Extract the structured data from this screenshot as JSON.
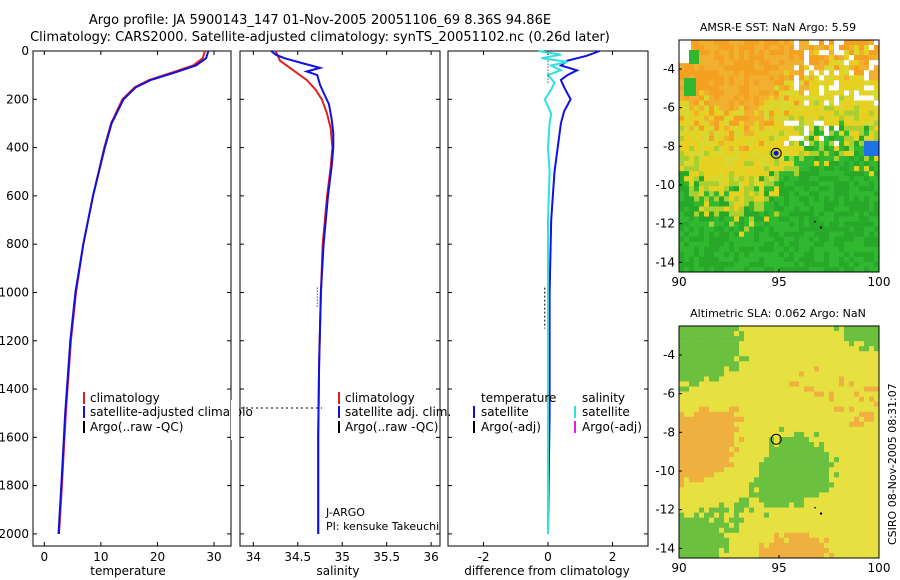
{
  "header": {
    "title_line1": "Argo profile: JA 5900143_147 01-Nov-2005 20051106_69 8.36S 94.86E",
    "title_line2": "Climatology: CARS2000. Satellite-adjusted climatology: synTS_20051102.nc (0.26d later)"
  },
  "footer": {
    "credit": "CSIRO 08-Nov-2005 08:31:07"
  },
  "colors": {
    "climatology": "#e02020",
    "satellite": "#1010e0",
    "argo": "#000000",
    "salinity_sat": "#30e0e0",
    "salinity_argo": "#e020e0",
    "sst_orange": "#f4a020",
    "sst_yellow": "#e8d020",
    "sst_green": "#30b830",
    "sla_yellow": "#e6e040",
    "sla_green": "#6cc040",
    "sla_orange": "#f0b040"
  },
  "chart_data": [
    {
      "type": "line",
      "name": "temperature-profile",
      "xlabel": "temperature",
      "ylabel": "",
      "xlim": [
        -2,
        33
      ],
      "ylim": [
        2050,
        0
      ],
      "xticks": [
        0,
        10,
        20,
        30
      ],
      "yticks": [
        0,
        200,
        400,
        600,
        800,
        1000,
        1200,
        1400,
        1600,
        1800,
        2000
      ],
      "legend": [
        "climatology",
        "satellite-adjusted climatolo",
        "Argo(..raw -QC)"
      ],
      "series": [
        {
          "name": "climatology",
          "depth": [
            0,
            30,
            60,
            90,
            120,
            150,
            200,
            300,
            400,
            600,
            800,
            1000,
            1200,
            1500,
            1800,
            2000
          ],
          "values": [
            28.4,
            28.0,
            26.3,
            22.5,
            18.5,
            16.0,
            13.8,
            11.8,
            10.6,
            8.6,
            6.9,
            5.6,
            4.7,
            3.8,
            3.1,
            2.6
          ]
        },
        {
          "name": "satellite",
          "depth": [
            0,
            30,
            60,
            90,
            120,
            150,
            200,
            300,
            400,
            600,
            800,
            1000,
            1200,
            1500,
            1800,
            2000
          ],
          "values": [
            29.0,
            28.6,
            26.8,
            23.0,
            18.8,
            16.2,
            14.0,
            11.9,
            10.7,
            8.6,
            6.9,
            5.5,
            4.6,
            3.7,
            3.0,
            2.5
          ]
        }
      ]
    },
    {
      "type": "line",
      "name": "salinity-profile",
      "xlabel": "salinity",
      "xlim": [
        33.85,
        36.1
      ],
      "ylim": [
        2050,
        0
      ],
      "xticks": [
        34,
        34.5,
        35,
        35.5,
        36
      ],
      "legend": [
        "climatology",
        "satellite adj. clim.",
        "Argo(..raw -QC)"
      ],
      "annotations": [
        "J-ARGO",
        "PI: kensuke Takeuchi"
      ],
      "series": [
        {
          "name": "climatology",
          "depth": [
            0,
            40,
            80,
            120,
            160,
            200,
            260,
            320,
            400,
            480,
            600,
            800,
            1000,
            1300,
            1600,
            2000
          ],
          "values": [
            34.25,
            34.3,
            34.45,
            34.6,
            34.7,
            34.77,
            34.83,
            34.87,
            34.89,
            34.87,
            34.83,
            34.78,
            34.76,
            34.74,
            34.73,
            34.73
          ]
        },
        {
          "name": "satellite",
          "depth": [
            0,
            15,
            30,
            50,
            70,
            85,
            100,
            140,
            180,
            220,
            280,
            340,
            400,
            480,
            600,
            800,
            1000,
            1300,
            1600,
            2000
          ],
          "values": [
            34.2,
            34.25,
            34.35,
            34.55,
            34.75,
            34.6,
            34.72,
            34.75,
            34.8,
            34.85,
            34.88,
            34.9,
            34.9,
            34.88,
            34.84,
            34.79,
            34.76,
            34.74,
            34.73,
            34.73
          ]
        }
      ]
    },
    {
      "type": "line",
      "name": "difference-profile",
      "xlabel": "difference from climatology",
      "xlim": [
        -3.1,
        3.1
      ],
      "ylim": [
        2050,
        0
      ],
      "xticks": [
        -2,
        0,
        2
      ],
      "legend": {
        "temperature": "temperature",
        "salinity": "salinity",
        "t_sat": "satellite",
        "t_argo": "Argo(-adj)",
        "s_sat": "satellite",
        "s_argo": "Argo(-adj)"
      },
      "series": [
        {
          "name": "temperature-satellite",
          "depth": [
            0,
            20,
            40,
            60,
            80,
            100,
            120,
            150,
            200,
            250,
            300,
            400,
            500,
            700,
            1000,
            1500,
            2000
          ],
          "values": [
            1.6,
            1.2,
            0.6,
            0.4,
            0.9,
            0.6,
            0.4,
            0.5,
            0.7,
            0.5,
            0.4,
            0.3,
            0.2,
            0.1,
            0.05,
            0.05,
            0.0
          ]
        },
        {
          "name": "salinity-satellite",
          "depth": [
            0,
            15,
            30,
            45,
            60,
            80,
            100,
            130,
            160,
            200,
            260,
            300,
            400,
            500,
            700,
            1000,
            1500,
            2000
          ],
          "values": [
            -0.3,
            0.4,
            -0.2,
            0.6,
            0.1,
            0.4,
            0.0,
            0.2,
            0.1,
            -0.1,
            0.1,
            0.05,
            0.0,
            0.05,
            0.0,
            0.0,
            0.0,
            0.0
          ]
        }
      ]
    },
    {
      "type": "heatmap",
      "name": "amsr-sst-map",
      "title": "AMSR-E SST: NaN Argo: 5.59",
      "xlim": [
        90,
        100
      ],
      "ylim": [
        -14.5,
        -2.5
      ],
      "xticks": [
        90,
        95,
        100
      ],
      "yticks": [
        -4,
        -6,
        -8,
        -10,
        -12,
        -14
      ],
      "marker_lon": 94.86,
      "marker_lat": -8.36
    },
    {
      "type": "heatmap",
      "name": "altimetric-sla-map",
      "title": "Altimetric SLA: 0.062 Argo: NaN",
      "xlim": [
        90,
        100
      ],
      "ylim": [
        -14.5,
        -2.5
      ],
      "xticks": [
        90,
        95,
        100
      ],
      "yticks": [
        -4,
        -6,
        -8,
        -10,
        -12,
        -14
      ],
      "marker_lon": 94.86,
      "marker_lat": -8.36
    }
  ]
}
